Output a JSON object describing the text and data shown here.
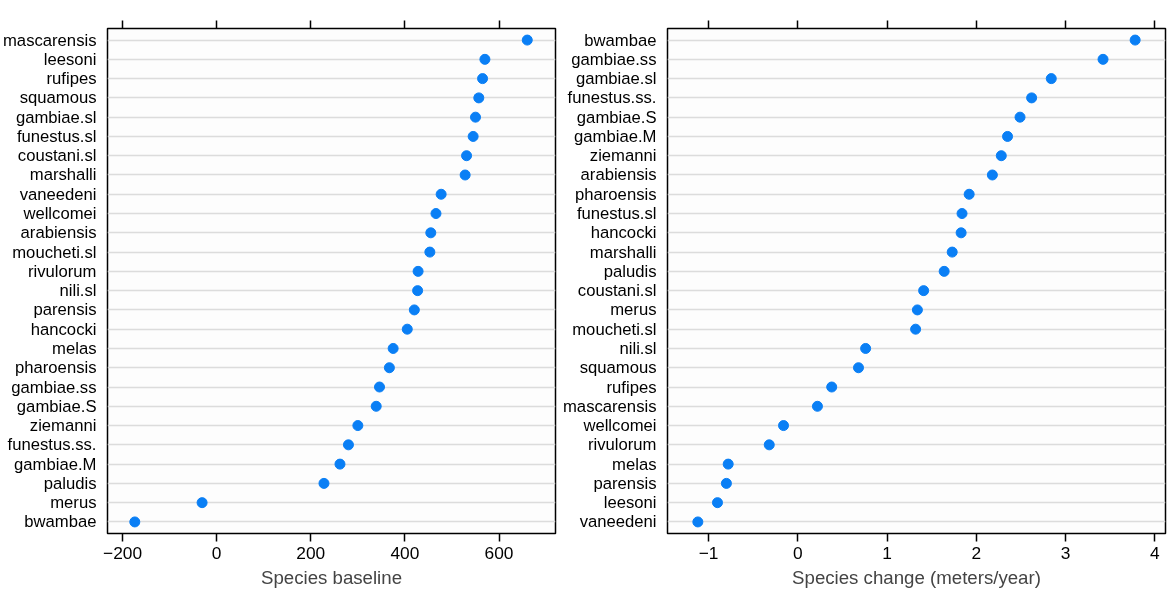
{
  "chart_data": [
    {
      "type": "scatter",
      "xlabel": "Species baseline",
      "categories": [
        "mascarensis",
        "leesoni",
        "rufipes",
        "squamous",
        "gambiae.sl",
        "funestus.sl",
        "coustani.sl",
        "marshalli",
        "vaneedeni",
        "wellcomei",
        "arabiensis",
        "moucheti.sl",
        "rivulorum",
        "nili.sl",
        "parensis",
        "hancocki",
        "melas",
        "pharoensis",
        "gambiae.ss",
        "gambiae.S",
        "ziemanni",
        "funestus.ss.",
        "gambiae.M",
        "paludis",
        "merus",
        "bwambae"
      ],
      "series": [
        {
          "color": "#0a7ff5",
          "values": [
            660,
            570,
            565,
            557,
            550,
            545,
            531,
            528,
            477,
            466,
            455,
            453,
            428,
            427,
            420,
            405,
            375,
            367,
            346,
            339,
            300,
            280,
            262,
            228,
            -31,
            -174
          ]
        }
      ],
      "xlim": [
        -232,
        720
      ],
      "xticks": [
        -200,
        0,
        200,
        400,
        600
      ],
      "orientation": "horizontal",
      "grid": "y",
      "marker": "circle"
    },
    {
      "type": "scatter",
      "xlabel": "Species change (meters/year)",
      "categories": [
        "bwambae",
        "gambiae.ss",
        "gambiae.sl",
        "funestus.ss.",
        "gambiae.S",
        "gambiae.M",
        "ziemanni",
        "arabiensis",
        "pharoensis",
        "funestus.sl",
        "hancocki",
        "marshalli",
        "paludis",
        "coustani.sl",
        "merus",
        "moucheti.sl",
        "nili.sl",
        "squamous",
        "rufipes",
        "mascarensis",
        "wellcomei",
        "rivulorum",
        "melas",
        "parensis",
        "leesoni",
        "vaneedeni"
      ],
      "series": [
        {
          "color": "#0a7ff5",
          "values": [
            3.78,
            3.42,
            2.84,
            2.62,
            2.49,
            2.35,
            2.28,
            2.18,
            1.92,
            1.84,
            1.83,
            1.73,
            1.64,
            1.41,
            1.34,
            1.32,
            0.76,
            0.68,
            0.38,
            0.22,
            -0.16,
            -0.32,
            -0.78,
            -0.8,
            -0.9,
            -1.12
          ]
        }
      ],
      "xlim": [
        -1.46,
        4.12
      ],
      "xticks": [
        -1,
        0,
        1,
        2,
        3,
        4
      ],
      "orientation": "horizontal",
      "grid": "y",
      "marker": "circle"
    }
  ]
}
